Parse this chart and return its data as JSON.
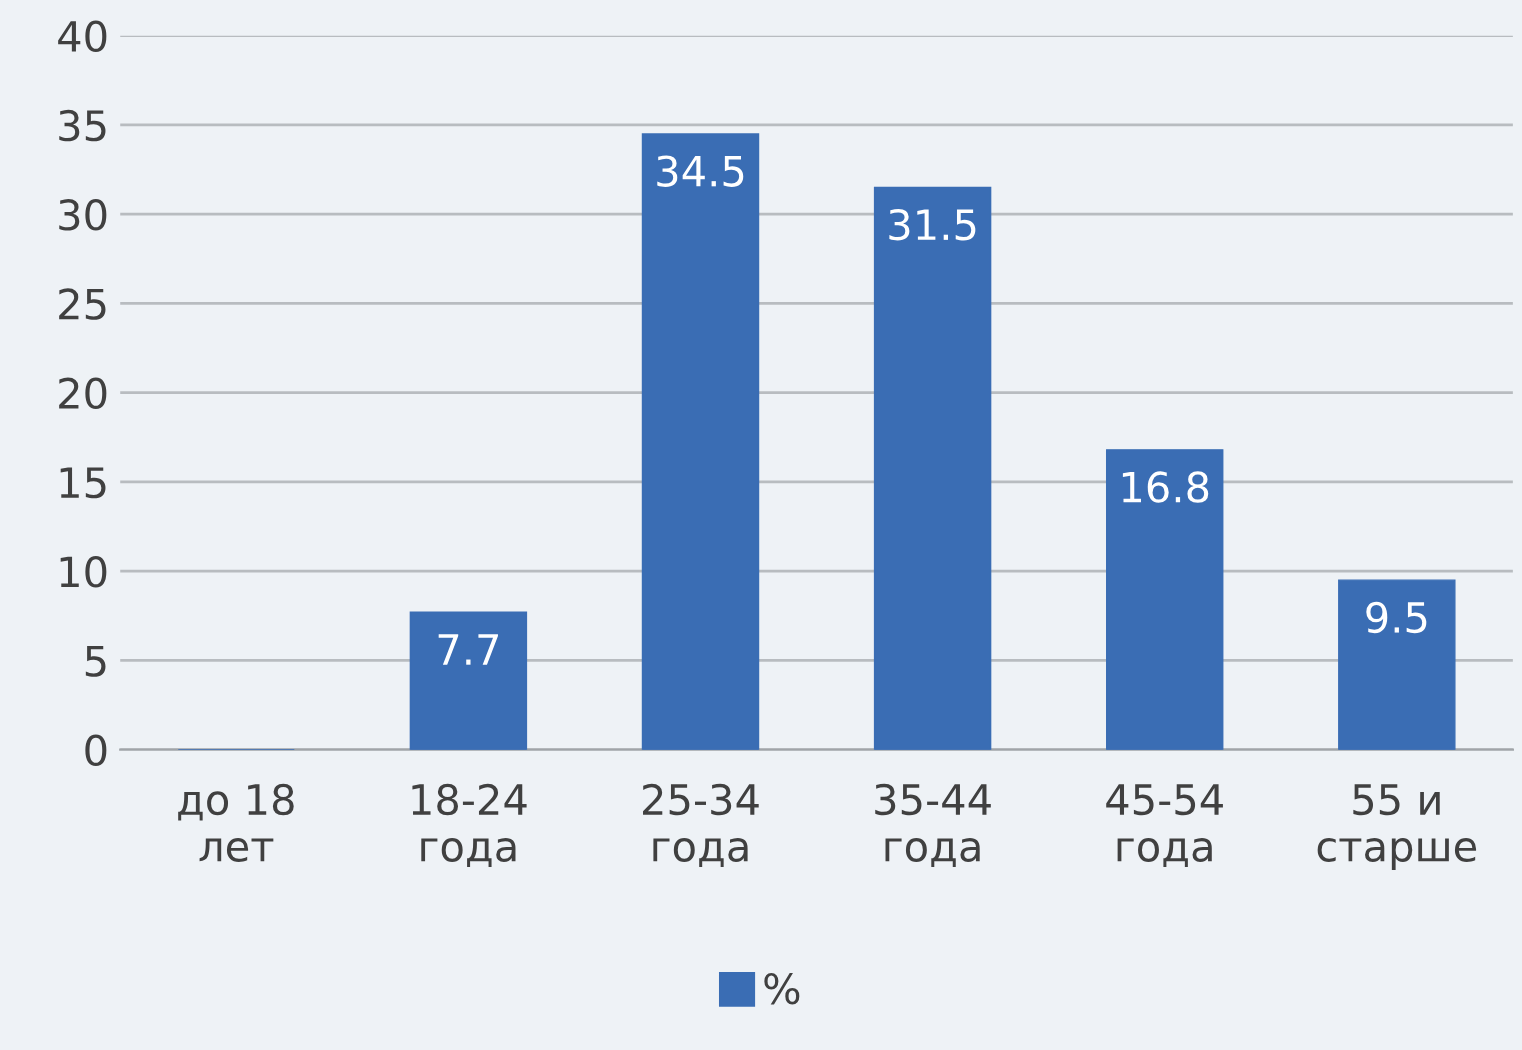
{
  "chart_data": {
    "type": "bar",
    "categories": [
      "до 18\nлет",
      "18-24\nгода",
      "25-34\nгода",
      "35-44\nгода",
      "45-54\nгода",
      "55 и\nстарше"
    ],
    "series": [
      {
        "name": "%",
        "color": "#3a6db4",
        "values": [
          0,
          7.7,
          34.5,
          31.5,
          16.8,
          9.5
        ],
        "value_labels": [
          null,
          "7.7",
          "34.5",
          "31.5",
          "16.8",
          "9.5"
        ]
      }
    ],
    "ylim": [
      0,
      40
    ],
    "yticks": [
      0,
      5,
      10,
      15,
      20,
      25,
      30,
      35,
      40
    ],
    "grid": "y",
    "legend": "bottom"
  }
}
